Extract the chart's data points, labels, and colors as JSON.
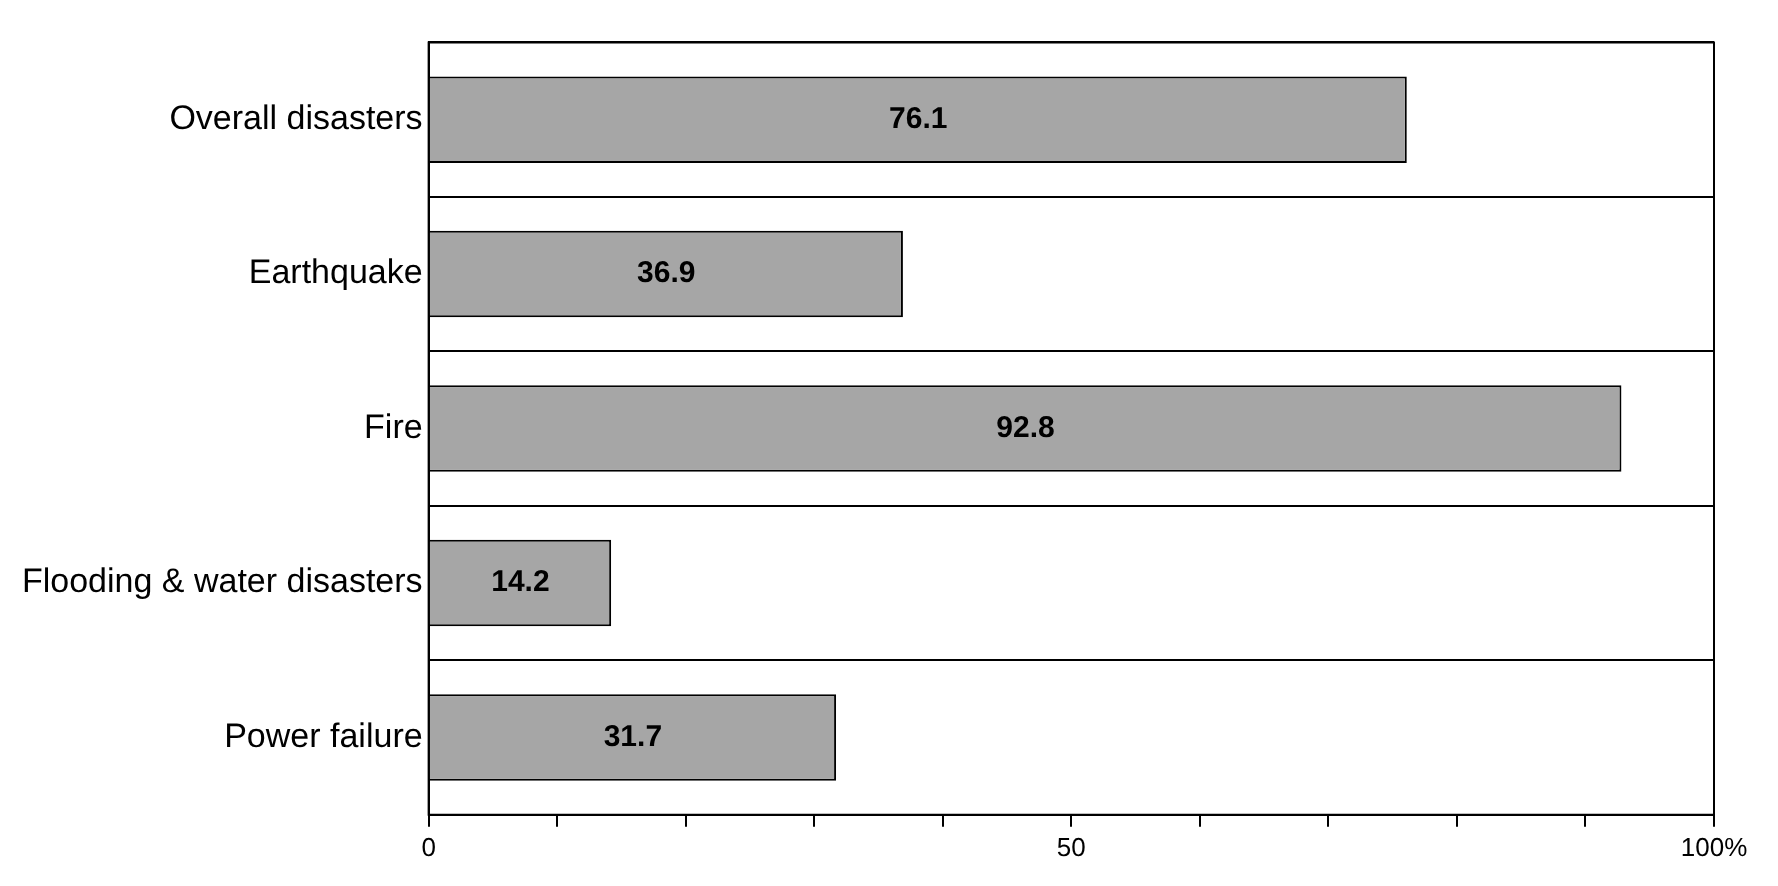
{
  "chart_data": {
    "type": "bar",
    "orientation": "horizontal",
    "categories": [
      "Overall disasters",
      "Earthquake",
      "Fire",
      "Flooding & water disasters",
      "Power failure"
    ],
    "values": [
      76.1,
      36.9,
      92.8,
      14.2,
      31.7
    ],
    "color": "#a6a6a6",
    "data_labels": true,
    "xlim": [
      0,
      100
    ],
    "xticks": [
      0,
      {
        "value": 10,
        "label": null
      },
      {
        "value": 20,
        "label": null
      },
      {
        "value": 30,
        "label": null
      },
      {
        "value": 40,
        "label": null
      },
      50,
      {
        "value": 60,
        "label": null
      },
      {
        "value": 70,
        "label": null
      },
      {
        "value": 80,
        "label": null
      },
      {
        "value": 90,
        "label": null
      },
      {
        "value": 100,
        "label": "100%"
      }
    ],
    "grid": "y",
    "legend": false
  }
}
